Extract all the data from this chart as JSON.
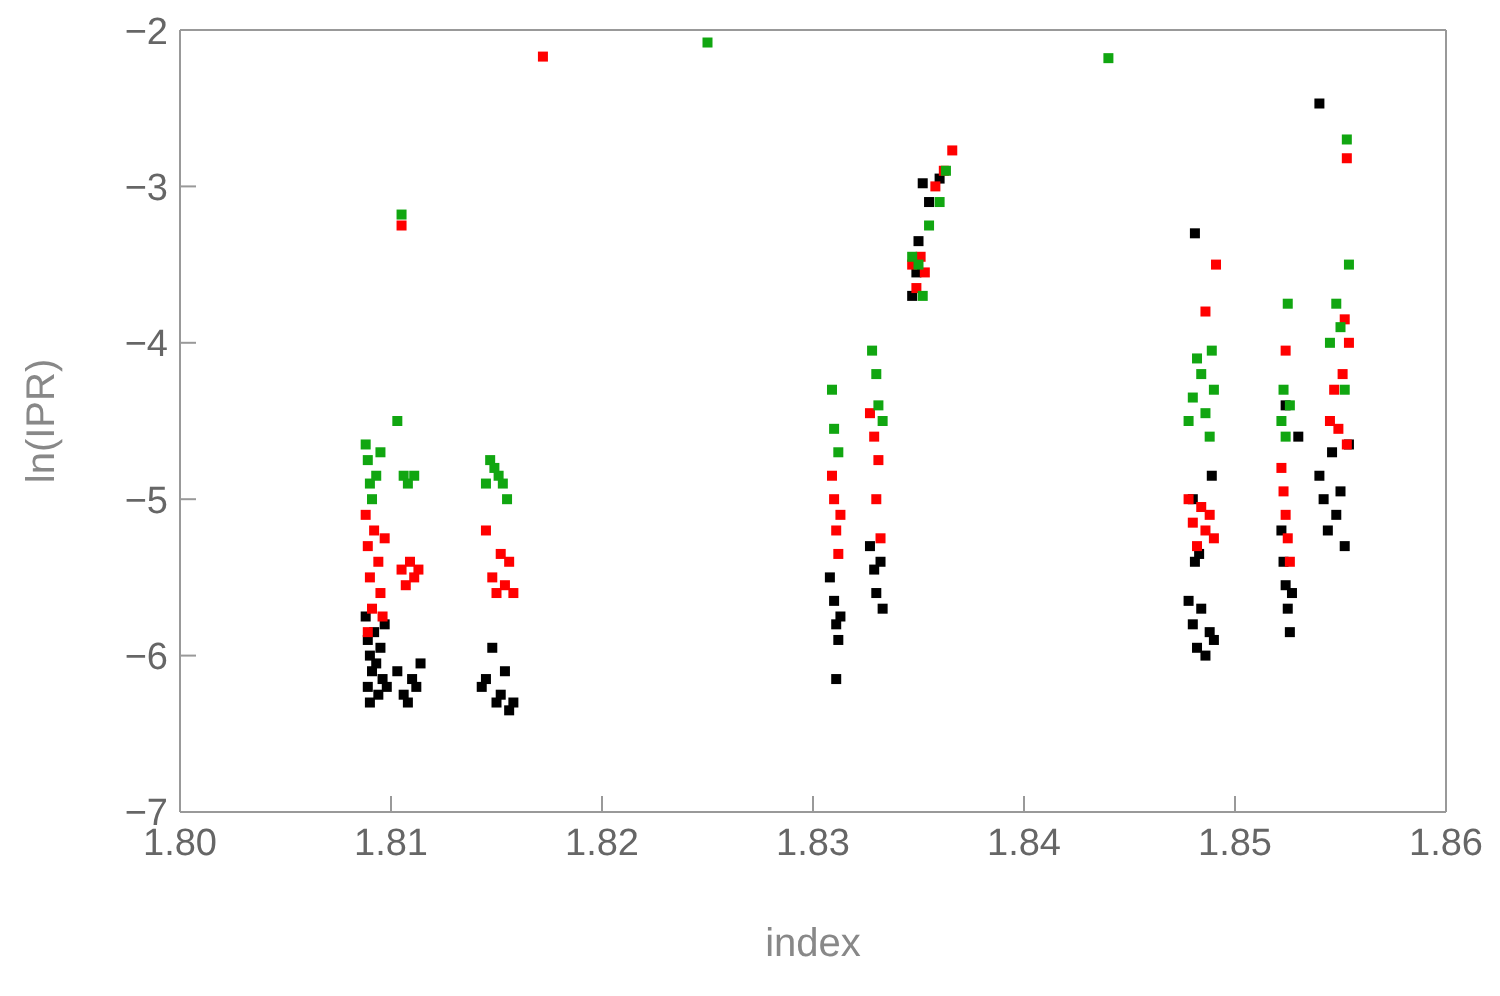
{
  "chart_data": {
    "type": "scatter",
    "xlabel": "index",
    "ylabel": "ln(IPR)",
    "xlim": [
      1.8,
      1.86
    ],
    "ylim": [
      -7,
      -2
    ],
    "xticks": [
      {
        "value": 1.8,
        "label": "1.80"
      },
      {
        "value": 1.81,
        "label": "1.81"
      },
      {
        "value": 1.82,
        "label": "1.82"
      },
      {
        "value": 1.83,
        "label": "1.83"
      },
      {
        "value": 1.84,
        "label": "1.84"
      },
      {
        "value": 1.85,
        "label": "1.85"
      },
      {
        "value": 1.86,
        "label": "1.86"
      }
    ],
    "yticks": [
      -7,
      -6,
      -5,
      -4,
      -3,
      -2
    ],
    "marker": "square",
    "series": [
      {
        "color": "#000000",
        "x": [
          1.8088,
          1.8089,
          1.809,
          1.8091,
          1.8089,
          1.809,
          1.8092,
          1.8093,
          1.8094,
          1.8095,
          1.8096,
          1.8097,
          1.8098,
          1.8103,
          1.8106,
          1.8108,
          1.811,
          1.8112,
          1.8114,
          1.8143,
          1.8145,
          1.8148,
          1.815,
          1.8152,
          1.8154,
          1.8156,
          1.8158,
          1.8308,
          1.831,
          1.8311,
          1.8312,
          1.8313,
          1.8311,
          1.8327,
          1.8329,
          1.833,
          1.8332,
          1.8333,
          1.8347,
          1.8349,
          1.835,
          1.8352,
          1.8355,
          1.836,
          1.8478,
          1.848,
          1.8482,
          1.8484,
          1.8486,
          1.8488,
          1.849,
          1.8481,
          1.8483,
          1.848,
          1.8489,
          1.8481,
          1.8522,
          1.8523,
          1.8524,
          1.8525,
          1.8526,
          1.8527,
          1.8524,
          1.853,
          1.854,
          1.8542,
          1.8544,
          1.8546,
          1.8548,
          1.855,
          1.8552,
          1.8554,
          1.854
        ],
        "values": [
          -5.75,
          -5.9,
          -6.0,
          -6.1,
          -6.2,
          -6.3,
          -5.85,
          -6.05,
          -6.25,
          -5.95,
          -6.15,
          -5.8,
          -6.2,
          -6.1,
          -6.25,
          -6.3,
          -6.15,
          -6.2,
          -6.05,
          -6.2,
          -6.15,
          -5.95,
          -6.3,
          -6.25,
          -6.1,
          -6.35,
          -6.3,
          -5.5,
          -5.65,
          -5.8,
          -5.9,
          -5.75,
          -6.15,
          -5.3,
          -5.45,
          -5.6,
          -5.4,
          -5.7,
          -3.7,
          -3.55,
          -3.35,
          -2.98,
          -3.1,
          -2.95,
          -5.65,
          -5.8,
          -5.95,
          -5.7,
          -6.0,
          -5.85,
          -5.9,
          -5.4,
          -5.35,
          -5.0,
          -4.85,
          -3.3,
          -5.2,
          -5.4,
          -5.55,
          -5.7,
          -5.85,
          -5.6,
          -4.4,
          -4.6,
          -4.85,
          -5.0,
          -5.2,
          -4.7,
          -5.1,
          -4.95,
          -5.3,
          -4.65,
          -2.47
        ]
      },
      {
        "color": "#ff0000",
        "x": [
          1.8088,
          1.8089,
          1.809,
          1.8091,
          1.8089,
          1.8092,
          1.8094,
          1.8095,
          1.8097,
          1.8096,
          1.8105,
          1.8107,
          1.8109,
          1.8111,
          1.8113,
          1.8105,
          1.8145,
          1.8148,
          1.815,
          1.8152,
          1.8154,
          1.8156,
          1.8158,
          1.8172,
          1.8309,
          1.831,
          1.8311,
          1.8312,
          1.8313,
          1.8327,
          1.8329,
          1.8331,
          1.833,
          1.8332,
          1.8347,
          1.8349,
          1.8351,
          1.8353,
          1.8358,
          1.8362,
          1.8366,
          1.8478,
          1.848,
          1.8482,
          1.8484,
          1.8486,
          1.8488,
          1.849,
          1.8486,
          1.8491,
          1.8522,
          1.8523,
          1.8524,
          1.8525,
          1.8526,
          1.8524,
          1.8545,
          1.8547,
          1.8549,
          1.8551,
          1.8553,
          1.8552,
          1.8554,
          1.8553
        ],
        "values": [
          -5.1,
          -5.3,
          -5.5,
          -5.7,
          -5.85,
          -5.2,
          -5.4,
          -5.6,
          -5.25,
          -5.75,
          -5.45,
          -5.55,
          -5.4,
          -5.5,
          -5.45,
          -3.25,
          -5.2,
          -5.5,
          -5.6,
          -5.35,
          -5.55,
          -5.4,
          -5.6,
          -2.17,
          -4.85,
          -5.0,
          -5.2,
          -5.35,
          -5.1,
          -4.45,
          -4.6,
          -4.75,
          -5.0,
          -5.25,
          -3.5,
          -3.65,
          -3.45,
          -3.55,
          -3.0,
          -2.9,
          -2.77,
          -5.0,
          -5.15,
          -5.3,
          -5.05,
          -5.2,
          -5.1,
          -5.25,
          -3.8,
          -3.5,
          -4.8,
          -4.95,
          -5.1,
          -5.25,
          -5.4,
          -4.05,
          -4.5,
          -4.3,
          -4.55,
          -4.2,
          -4.65,
          -3.85,
          -4.0,
          -2.82
        ]
      },
      {
        "color": "#11a611",
        "x": [
          1.8088,
          1.8089,
          1.809,
          1.8091,
          1.8093,
          1.8095,
          1.8103,
          1.8106,
          1.8108,
          1.8111,
          1.8105,
          1.8145,
          1.8147,
          1.8149,
          1.8151,
          1.8153,
          1.8155,
          1.8309,
          1.831,
          1.8312,
          1.8328,
          1.833,
          1.8331,
          1.8333,
          1.8347,
          1.835,
          1.8352,
          1.8355,
          1.836,
          1.8363,
          1.825,
          1.844,
          1.8478,
          1.848,
          1.8482,
          1.8484,
          1.8486,
          1.8488,
          1.849,
          1.8489,
          1.8522,
          1.8523,
          1.8524,
          1.8525,
          1.8526,
          1.8545,
          1.8548,
          1.855,
          1.8552,
          1.8554,
          1.8553
        ],
        "values": [
          -4.65,
          -4.75,
          -4.9,
          -5.0,
          -4.85,
          -4.7,
          -4.5,
          -4.85,
          -4.9,
          -4.85,
          -3.18,
          -4.9,
          -4.75,
          -4.8,
          -4.85,
          -4.9,
          -5.0,
          -4.3,
          -4.55,
          -4.7,
          -4.05,
          -4.2,
          -4.4,
          -4.5,
          -3.45,
          -3.5,
          -3.7,
          -3.25,
          -3.1,
          -2.9,
          -2.08,
          -2.18,
          -4.5,
          -4.35,
          -4.1,
          -4.2,
          -4.45,
          -4.6,
          -4.3,
          -4.05,
          -4.5,
          -4.3,
          -4.6,
          -3.75,
          -4.4,
          -4.0,
          -3.75,
          -3.9,
          -4.3,
          -3.5,
          -2.7
        ]
      }
    ]
  }
}
